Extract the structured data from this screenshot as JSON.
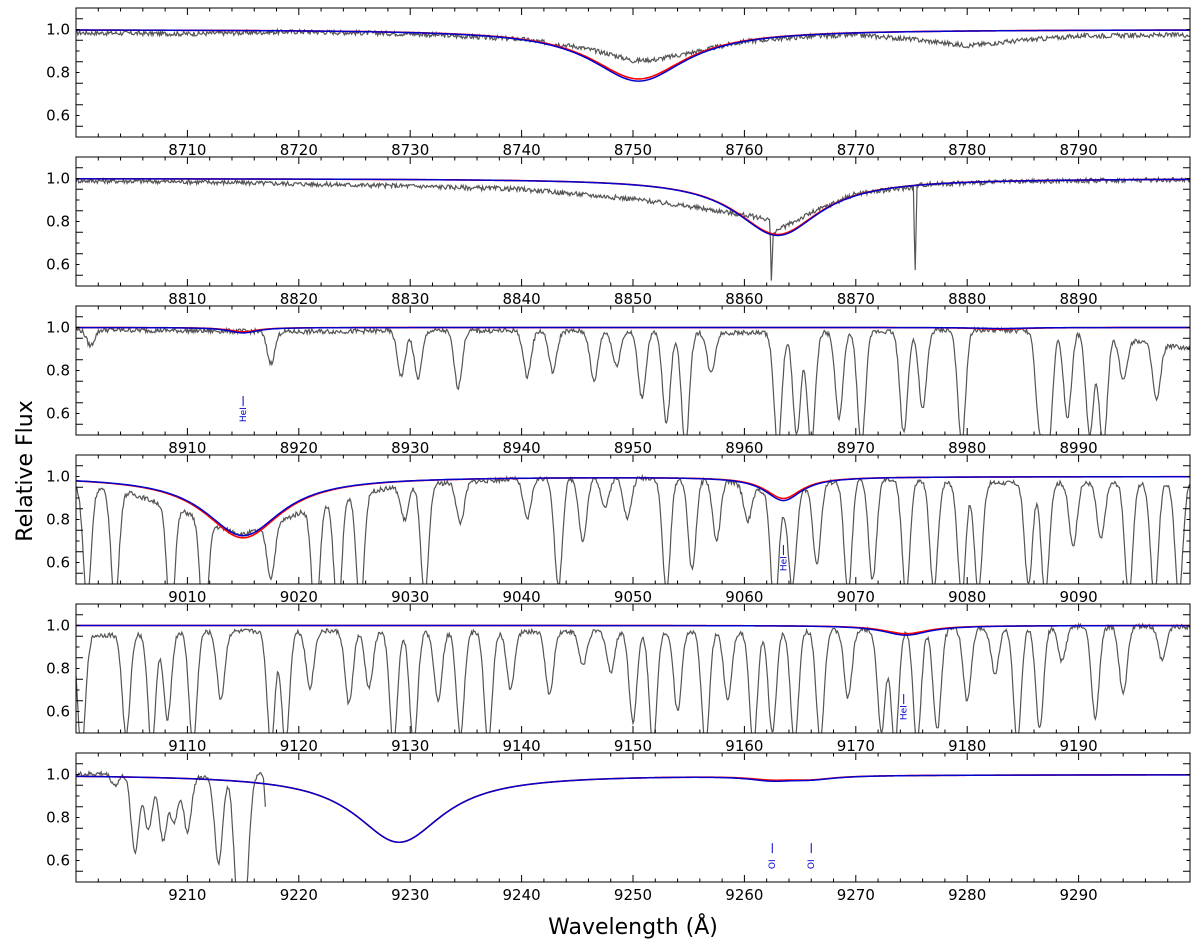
{
  "chart_data": {
    "type": "line",
    "xlabel": "Wavelength (Å)",
    "ylabel": "Relative Flux",
    "colors": {
      "observed": "#555555",
      "model_red": "#ff0000",
      "model_blue": "#0000cc",
      "label": "#0000cc"
    },
    "panels": [
      {
        "xlim": [
          8700,
          8800
        ],
        "ylim": [
          0.5,
          1.1
        ],
        "xticks": [
          8710,
          8720,
          8730,
          8740,
          8750,
          8760,
          8770,
          8780,
          8790
        ],
        "yticks": [
          0.6,
          0.8,
          1.0
        ],
        "lines": [
          {
            "center": 8750.5,
            "depth_red": 0.23,
            "depth_blue": 0.24,
            "width": 5.2
          }
        ],
        "observed": [
          [
            8700,
            0.985
          ],
          [
            8710,
            0.98
          ],
          [
            8720,
            0.99
          ],
          [
            8730,
            0.98
          ],
          [
            8740,
            0.955
          ],
          [
            8745,
            0.92
          ],
          [
            8748,
            0.885
          ],
          [
            8750,
            0.855
          ],
          [
            8752,
            0.86
          ],
          [
            8755,
            0.89
          ],
          [
            8760,
            0.945
          ],
          [
            8765,
            0.965
          ],
          [
            8770,
            0.975
          ],
          [
            8775,
            0.955
          ],
          [
            8780,
            0.925
          ],
          [
            8785,
            0.95
          ],
          [
            8790,
            0.97
          ],
          [
            8800,
            0.975
          ]
        ],
        "spikes": [],
        "labels": []
      },
      {
        "xlim": [
          8800,
          8900
        ],
        "ylim": [
          0.5,
          1.1
        ],
        "xticks": [
          8810,
          8820,
          8830,
          8840,
          8850,
          8860,
          8870,
          8880,
          8890
        ],
        "yticks": [
          0.6,
          0.8,
          1.0
        ],
        "lines": [
          {
            "center": 8863,
            "depth_red": 0.26,
            "depth_blue": 0.265,
            "width": 4.6
          }
        ],
        "observed": [
          [
            8800,
            0.99
          ],
          [
            8810,
            0.985
          ],
          [
            8820,
            0.975
          ],
          [
            8830,
            0.965
          ],
          [
            8840,
            0.95
          ],
          [
            8850,
            0.905
          ],
          [
            8855,
            0.87
          ],
          [
            8860,
            0.83
          ],
          [
            8862.3,
            0.81
          ],
          [
            8862.4,
            0.5
          ],
          [
            8862.6,
            0.75
          ],
          [
            8866,
            0.84
          ],
          [
            8870,
            0.93
          ],
          [
            8875.2,
            0.96
          ],
          [
            8875.3,
            0.5
          ],
          [
            8875.5,
            0.97
          ],
          [
            8880,
            0.98
          ],
          [
            8890,
            0.99
          ],
          [
            8900,
            0.995
          ]
        ],
        "spikes": [],
        "labels": []
      },
      {
        "xlim": [
          8900,
          9000
        ],
        "ylim": [
          0.5,
          1.1
        ],
        "xticks": [
          8910,
          8920,
          8930,
          8940,
          8950,
          8960,
          8970,
          8980,
          8990
        ],
        "yticks": [
          0.6,
          0.8,
          1.0
        ],
        "lines": [
          {
            "center": 8915,
            "depth_red": 0.02,
            "depth_blue": 0.025,
            "width": 1.6
          },
          {
            "center": 8983,
            "depth_red": 0.008,
            "depth_blue": 0.005,
            "width": 2.5
          }
        ],
        "observed": [
          [
            8900,
            0.99
          ],
          [
            8910,
            0.985
          ],
          [
            8920,
            0.98
          ],
          [
            8930,
            0.985
          ],
          [
            8940,
            0.985
          ],
          [
            8950,
            0.98
          ],
          [
            8960,
            0.975
          ],
          [
            8970,
            0.98
          ],
          [
            8980,
            0.99
          ],
          [
            8990,
            0.98
          ],
          [
            9000,
            0.9
          ]
        ],
        "spikes": [
          [
            8901.3,
            0.93
          ],
          [
            8917.5,
            0.86
          ],
          [
            8929.2,
            0.8
          ],
          [
            8930.7,
            0.79
          ],
          [
            8934.3,
            0.75
          ],
          [
            8940.5,
            0.8
          ],
          [
            8942.8,
            0.82
          ],
          [
            8946.5,
            0.78
          ],
          [
            8948.5,
            0.85
          ],
          [
            8950.8,
            0.71
          ],
          [
            8953,
            0.6
          ],
          [
            8954.7,
            0.5
          ],
          [
            8957,
            0.82
          ],
          [
            8963,
            0.5
          ],
          [
            8964.7,
            0.55
          ],
          [
            8966,
            0.5
          ],
          [
            8968.5,
            0.62
          ],
          [
            8970.5,
            0.5
          ],
          [
            8974.3,
            0.55
          ],
          [
            8976,
            0.65
          ],
          [
            8979.5,
            0.5
          ],
          [
            8986.5,
            0.58
          ],
          [
            8987.3,
            0.5
          ],
          [
            8989,
            0.62
          ],
          [
            8991,
            0.55
          ],
          [
            8992.2,
            0.5
          ],
          [
            8994,
            0.82
          ],
          [
            8997,
            0.75
          ]
        ],
        "labels": [
          {
            "x": 8915,
            "text": "HeI"
          }
        ]
      },
      {
        "xlim": [
          9000,
          9100
        ],
        "ylim": [
          0.5,
          1.1
        ],
        "xticks": [
          9010,
          9020,
          9030,
          9040,
          9050,
          9060,
          9070,
          9080,
          9090
        ],
        "yticks": [
          0.6,
          0.8,
          1.0
        ],
        "lines": [
          {
            "center": 9015,
            "depth_red": 0.285,
            "depth_blue": 0.275,
            "width": 4.2
          },
          {
            "center": 9063.5,
            "depth_red": 0.1,
            "depth_blue": 0.11,
            "width": 2.0
          }
        ],
        "observed": [
          [
            9000,
            0.96
          ],
          [
            9005,
            0.92
          ],
          [
            9010,
            0.83
          ],
          [
            9013,
            0.76
          ],
          [
            9015,
            0.73
          ],
          [
            9017,
            0.76
          ],
          [
            9020,
            0.83
          ],
          [
            9025,
            0.92
          ],
          [
            9030,
            0.96
          ],
          [
            9040,
            0.99
          ],
          [
            9050,
            0.995
          ],
          [
            9058,
            0.985
          ],
          [
            9062,
            0.93
          ],
          [
            9063.5,
            0.88
          ],
          [
            9066,
            0.96
          ],
          [
            9070,
            0.99
          ],
          [
            9080,
            0.97
          ],
          [
            9090,
            0.97
          ],
          [
            9100,
            0.97
          ]
        ],
        "spikes": [
          [
            9001,
            0.5
          ],
          [
            9003.5,
            0.5
          ],
          [
            9008.5,
            0.5
          ],
          [
            9011.5,
            0.5
          ],
          [
            9017.5,
            0.77
          ],
          [
            9021.5,
            0.5
          ],
          [
            9023.5,
            0.5
          ],
          [
            9025.5,
            0.5
          ],
          [
            9029.5,
            0.85
          ],
          [
            9031.3,
            0.5
          ],
          [
            9034.5,
            0.82
          ],
          [
            9040.5,
            0.82
          ],
          [
            9043.3,
            0.52
          ],
          [
            9045.5,
            0.72
          ],
          [
            9047.5,
            0.87
          ],
          [
            9049.5,
            0.82
          ],
          [
            9053,
            0.5
          ],
          [
            9055.3,
            0.6
          ],
          [
            9057.5,
            0.73
          ],
          [
            9060.3,
            0.85
          ],
          [
            9062.7,
            0.5
          ],
          [
            9064.3,
            0.6
          ],
          [
            9066.5,
            0.65
          ],
          [
            9069.3,
            0.5
          ],
          [
            9071.5,
            0.55
          ],
          [
            9074.5,
            0.5
          ],
          [
            9077,
            0.52
          ],
          [
            9079.5,
            0.5
          ],
          [
            9081,
            0.52
          ],
          [
            9085.5,
            0.55
          ],
          [
            9087,
            0.5
          ],
          [
            9089.5,
            0.72
          ],
          [
            9092,
            0.75
          ],
          [
            9094.5,
            0.5
          ],
          [
            9096.8,
            0.5
          ],
          [
            9099,
            0.5
          ]
        ],
        "labels": [
          {
            "x": 9063.5,
            "text": "HeI"
          }
        ]
      },
      {
        "xlim": [
          9100,
          9200
        ],
        "ylim": [
          0.5,
          1.1
        ],
        "xticks": [
          9110,
          9120,
          9130,
          9140,
          9150,
          9160,
          9170,
          9180,
          9190
        ],
        "yticks": [
          0.6,
          0.8,
          1.0
        ],
        "lines": [
          {
            "center": 9174.5,
            "depth_red": 0.038,
            "depth_blue": 0.045,
            "width": 2.5
          }
        ],
        "observed": [
          [
            9100,
            0.95
          ],
          [
            9110,
            0.97
          ],
          [
            9120,
            0.975
          ],
          [
            9130,
            0.97
          ],
          [
            9140,
            0.97
          ],
          [
            9150,
            0.975
          ],
          [
            9160,
            0.97
          ],
          [
            9170,
            0.98
          ],
          [
            9180,
            0.985
          ],
          [
            9190,
            0.995
          ],
          [
            9200,
            0.995
          ]
        ],
        "spikes": [
          [
            9100.5,
            0.5
          ],
          [
            9104.5,
            0.55
          ],
          [
            9106.8,
            0.5
          ],
          [
            9108.2,
            0.62
          ],
          [
            9110.5,
            0.5
          ],
          [
            9113,
            0.7
          ],
          [
            9117.5,
            0.5
          ],
          [
            9118.8,
            0.5
          ],
          [
            9121,
            0.75
          ],
          [
            9124.5,
            0.68
          ],
          [
            9126.3,
            0.75
          ],
          [
            9128.5,
            0.5
          ],
          [
            9130.3,
            0.5
          ],
          [
            9132.5,
            0.7
          ],
          [
            9134.5,
            0.55
          ],
          [
            9137,
            0.5
          ],
          [
            9139,
            0.75
          ],
          [
            9142.5,
            0.72
          ],
          [
            9145.5,
            0.85
          ],
          [
            9148,
            0.82
          ],
          [
            9150,
            0.6
          ],
          [
            9151.8,
            0.5
          ],
          [
            9154,
            0.65
          ],
          [
            9156.5,
            0.5
          ],
          [
            9158.5,
            0.7
          ],
          [
            9160.8,
            0.5
          ],
          [
            9162.5,
            0.55
          ],
          [
            9164.5,
            0.5
          ],
          [
            9166.8,
            0.52
          ],
          [
            9169.3,
            0.7
          ],
          [
            9172.3,
            0.55
          ],
          [
            9173.5,
            0.5
          ],
          [
            9175.5,
            0.5
          ],
          [
            9177.3,
            0.55
          ],
          [
            9180,
            0.68
          ],
          [
            9182.5,
            0.8
          ],
          [
            9184.5,
            0.5
          ],
          [
            9186.5,
            0.55
          ],
          [
            9188.5,
            0.85
          ],
          [
            9191.5,
            0.6
          ],
          [
            9194,
            0.7
          ],
          [
            9197.5,
            0.85
          ]
        ],
        "labels": [
          {
            "x": 9174.3,
            "text": "HeI"
          }
        ]
      },
      {
        "xlim": [
          9200,
          9300
        ],
        "ylim": [
          0.5,
          1.1
        ],
        "xticks": [
          9210,
          9220,
          9230,
          9240,
          9250,
          9260,
          9270,
          9280,
          9290
        ],
        "yticks": [
          0.6,
          0.8,
          1.0
        ],
        "lines": [
          {
            "center": 9229,
            "depth_red": 0.315,
            "depth_blue": 0.315,
            "width": 4.8
          },
          {
            "center": 9262.5,
            "depth_red": 0.015,
            "depth_blue": 0.02,
            "width": 2.5
          },
          {
            "center": 9266,
            "depth_red": 0.015,
            "depth_blue": 0.015,
            "width": 2.5
          }
        ],
        "observed": [
          [
            9200,
            1.0
          ],
          [
            9203,
            1.005
          ],
          [
            9206,
            0.995
          ],
          [
            9209,
            0.99
          ],
          [
            9212,
            0.985
          ],
          [
            9215,
            0.99
          ],
          [
            9216.8,
            1.0
          ],
          [
            9217,
            0.84
          ]
        ],
        "spikes": [
          [
            9203.5,
            0.95
          ],
          [
            9205.3,
            0.66
          ],
          [
            9206.5,
            0.76
          ],
          [
            9207.8,
            0.72
          ],
          [
            9208.8,
            0.8
          ],
          [
            9210,
            0.76
          ],
          [
            9212.8,
            0.62
          ],
          [
            9214.5,
            0.5
          ],
          [
            9215.2,
            0.5
          ]
        ],
        "labels": [
          {
            "x": 9262.5,
            "text": "OI"
          },
          {
            "x": 9266,
            "text": "OI"
          }
        ]
      }
    ]
  }
}
